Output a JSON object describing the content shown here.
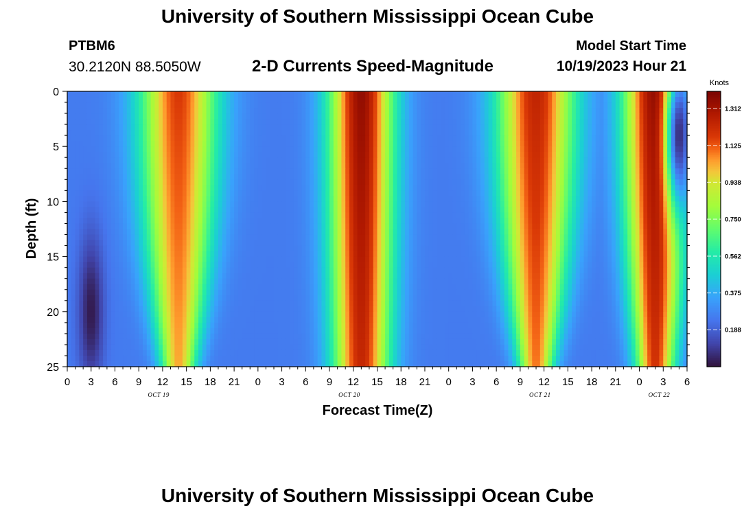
{
  "title": "University of Southern Mississippi Ocean Cube",
  "station": {
    "id": "PTBM6",
    "coords": "30.2120N  88.5050W"
  },
  "plot_title": "2-D Currents Speed-Magnitude",
  "model": {
    "label": "Model Start Time",
    "time": "10/19/2023 Hour 21"
  },
  "chart_data": {
    "type": "heatmap",
    "title": "2-D Currents Speed-Magnitude",
    "xlabel": "Forecast Time(Z)",
    "ylabel": "Depth (ft)",
    "x_tick_labels": [
      "0",
      "3",
      "6",
      "9",
      "12",
      "15",
      "18",
      "21",
      "0",
      "3",
      "6",
      "9",
      "12",
      "15",
      "18",
      "21",
      "0",
      "3",
      "6",
      "9",
      "12",
      "15",
      "18",
      "21",
      "0",
      "3",
      "6"
    ],
    "x_range_hours": [
      0,
      78
    ],
    "day_labels": [
      {
        "text": "OCT 19",
        "hour": 11.5
      },
      {
        "text": "OCT 20",
        "hour": 35.5
      },
      {
        "text": "OCT 21",
        "hour": 59.5
      },
      {
        "text": "OCT 22",
        "hour": 74.5
      }
    ],
    "y_ticks": [
      "0",
      "5",
      "10",
      "15",
      "20",
      "25"
    ],
    "y_range_ft": [
      0,
      25
    ],
    "colorbar": {
      "unit": "Knots",
      "min": 0,
      "max": 1.4,
      "ticks": [
        "1.312",
        "1.125",
        "0.938",
        "0.750",
        "0.562",
        "0.375",
        "0.188"
      ],
      "tick_values": [
        1.312,
        1.125,
        0.938,
        0.75,
        0.562,
        0.375,
        0.188
      ]
    },
    "lobes": [
      {
        "hour": 14.0,
        "width": 4.6,
        "peak_knots": 1.17,
        "depth_ft": 25.6,
        "curvature": 0.58
      },
      {
        "hour": 37.0,
        "width": 3.8,
        "peak_knots": 1.35,
        "depth_ft": 34.0,
        "curvature": 0.22
      },
      {
        "hour": 59.0,
        "width": 4.6,
        "peak_knots": 1.24,
        "depth_ft": 25.6,
        "curvature": 0.58
      },
      {
        "hour": 74.0,
        "width": 3.8,
        "peak_knots": 1.36,
        "depth_ft": 25.0,
        "curvature": 0.4
      }
    ],
    "background_knots": 0.25,
    "low_cores": [
      {
        "hour": 3.0,
        "depth_ft": 20,
        "knots": 0.02
      },
      {
        "hour": 77.0,
        "depth_ft": 4,
        "knots": 0.06
      }
    ]
  }
}
